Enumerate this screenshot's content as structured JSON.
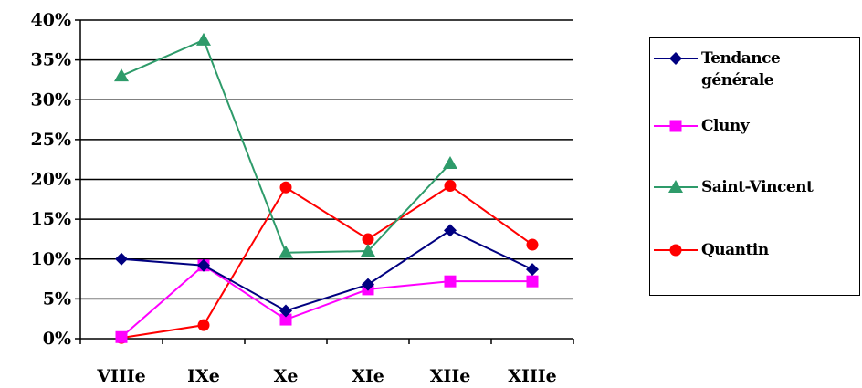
{
  "chart_data": {
    "type": "line",
    "categories": [
      "VIIIe",
      "IXe",
      "Xe",
      "XIe",
      "XIIe",
      "XIIIe"
    ],
    "yticks": [
      "0%",
      "5%",
      "10%",
      "15%",
      "20%",
      "25%",
      "30%",
      "35%",
      "40%"
    ],
    "ylim": [
      0,
      40
    ],
    "y_unit": "%",
    "grid": true,
    "legend_position": "right",
    "series": [
      {
        "name": "Tendance générale",
        "color": "#000080",
        "marker": "diamond",
        "values": [
          10,
          9.2,
          3.5,
          6.8,
          13.6,
          8.7
        ]
      },
      {
        "name": "Cluny",
        "color": "#ff00ff",
        "marker": "square",
        "values": [
          0.2,
          9.2,
          2.4,
          6.2,
          7.2,
          7.2
        ]
      },
      {
        "name": "Saint-Vincent",
        "color": "#2e9b6a",
        "marker": "triangle",
        "values": [
          33,
          37.5,
          10.8,
          11,
          22,
          null
        ]
      },
      {
        "name": "Quantin",
        "color": "#ff0000",
        "marker": "circle",
        "values": [
          0.1,
          1.7,
          19,
          12.5,
          19.2,
          11.8
        ]
      }
    ]
  }
}
